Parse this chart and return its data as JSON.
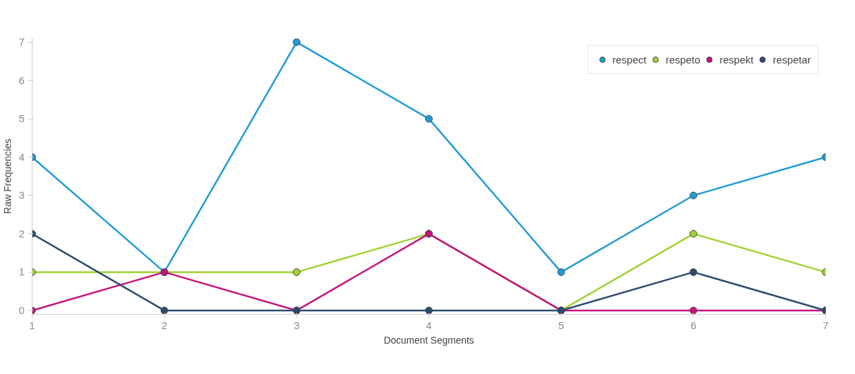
{
  "chart_data": {
    "type": "line",
    "xlabel": "Document Segments",
    "ylabel": "Raw Frequencies",
    "x": [
      1,
      2,
      3,
      4,
      5,
      6,
      7
    ],
    "xlim": [
      1,
      7
    ],
    "xticks": [
      1,
      2,
      3,
      4,
      5,
      6,
      7
    ],
    "ylim": [
      -0.1,
      7.1
    ],
    "yticks": [
      0,
      1,
      2,
      3,
      4,
      5,
      6,
      7
    ],
    "grid": false,
    "legend": "top right",
    "marker": "circle",
    "line_style": "solid",
    "series": [
      {
        "name": "respect",
        "color": "#1f9bd7",
        "values": [
          4,
          1,
          7,
          5,
          1,
          3,
          4
        ]
      },
      {
        "name": "respeto",
        "color": "#9fd231",
        "values": [
          1,
          1,
          1,
          2,
          0,
          2,
          1
        ]
      },
      {
        "name": "respekt",
        "color": "#c4137f",
        "values": [
          0,
          1,
          0,
          2,
          0,
          0,
          0
        ]
      },
      {
        "name": "respetar",
        "color": "#2b4a6f",
        "values": [
          2,
          0,
          0,
          0,
          0,
          1,
          0
        ]
      }
    ]
  }
}
